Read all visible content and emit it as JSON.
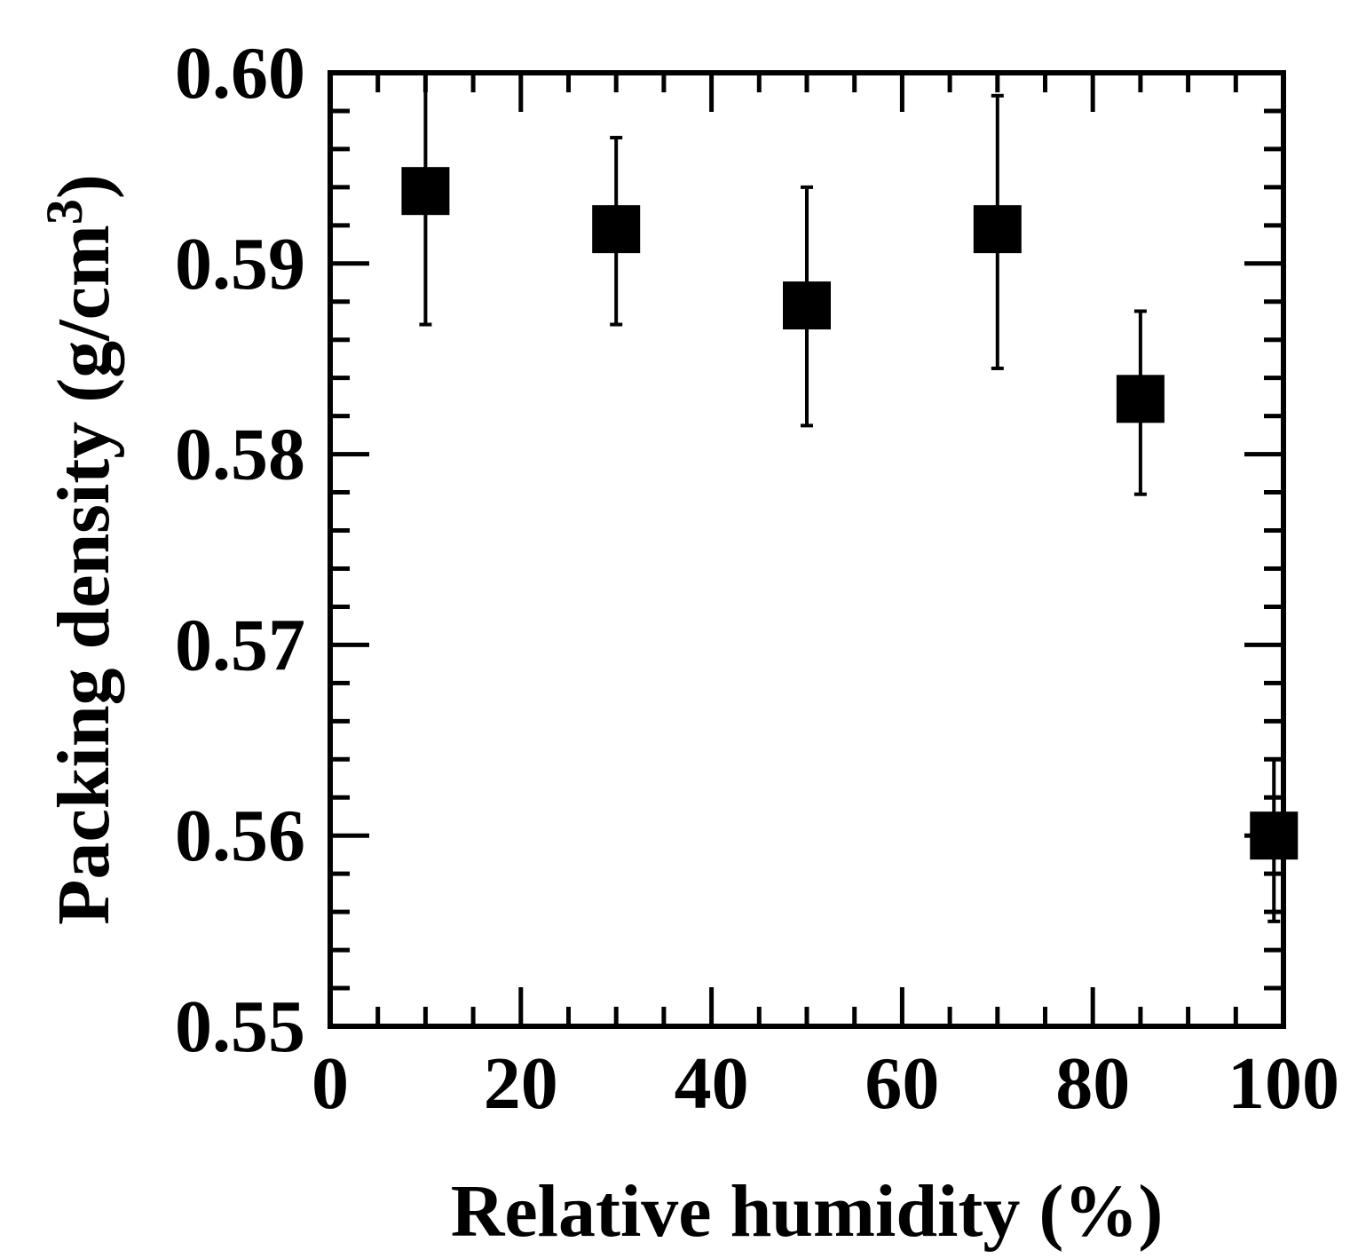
{
  "chart_data": {
    "type": "scatter",
    "xlabel": "Relative humidity  (%)",
    "ylabel_main": "Packing density  (g/cm",
    "ylabel_sup": "3",
    "ylabel_close": ")",
    "xlim": [
      0,
      100
    ],
    "ylim": [
      0.55,
      0.6
    ],
    "x_ticks": [
      0,
      20,
      40,
      60,
      80,
      100
    ],
    "x_tick_labels": [
      "0",
      "20",
      "40",
      "60",
      "80",
      "100"
    ],
    "y_ticks": [
      0.55,
      0.56,
      0.57,
      0.58,
      0.59,
      0.6
    ],
    "y_tick_labels": [
      "0.55",
      "0.56",
      "0.57",
      "0.58",
      "0.59",
      "0.60"
    ],
    "x_minor_step": 5,
    "y_minor_step": 0.002,
    "grid": false,
    "marker": "square",
    "color": "#000000",
    "points": [
      {
        "x": 10,
        "y": 0.5938,
        "err_lo": 0.5868,
        "err_hi": 0.6
      },
      {
        "x": 30,
        "y": 0.5918,
        "err_lo": 0.5868,
        "err_hi": 0.5966
      },
      {
        "x": 50,
        "y": 0.5878,
        "err_lo": 0.5815,
        "err_hi": 0.594
      },
      {
        "x": 70,
        "y": 0.5918,
        "err_lo": 0.5845,
        "err_hi": 0.5988
      },
      {
        "x": 85,
        "y": 0.5829,
        "err_lo": 0.5779,
        "err_hi": 0.5875
      },
      {
        "x": 99,
        "y": 0.56,
        "err_lo": 0.5555,
        "err_hi": 0.564
      }
    ]
  }
}
